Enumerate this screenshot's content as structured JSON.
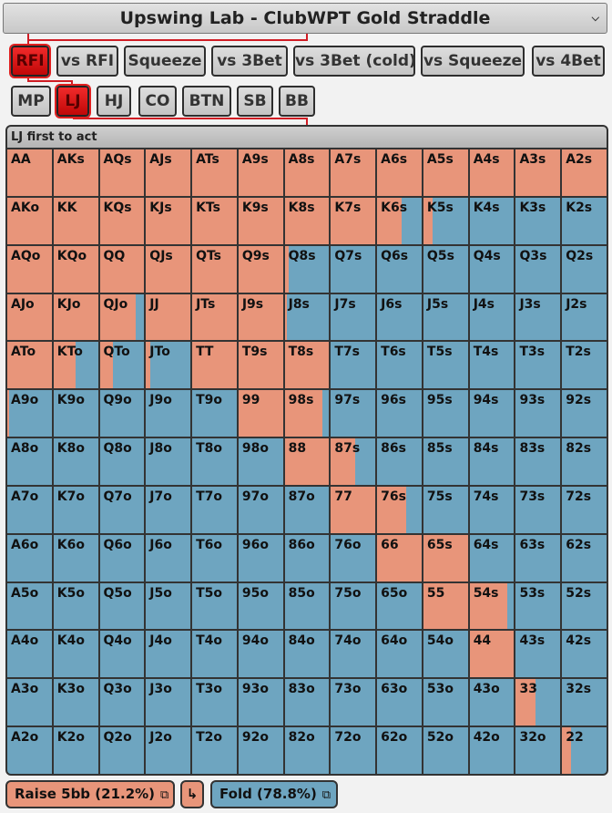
{
  "header": {
    "title": "Upswing Lab - ClubWPT Gold Straddle"
  },
  "action_tabs": [
    "RFI",
    "vs RFI",
    "Squeeze",
    "vs 3Bet",
    "vs 3Bet (cold)",
    "vs Squeeze",
    "vs 4Bet"
  ],
  "action_selected": "RFI",
  "positions": [
    "MP",
    "LJ",
    "HJ",
    "CO",
    "BTN",
    "SB",
    "BB"
  ],
  "position_selected": "LJ",
  "range_title": "LJ first to act",
  "hands": [
    [
      "AA",
      "AKs",
      "AQs",
      "AJs",
      "ATs",
      "A9s",
      "A8s",
      "A7s",
      "A6s",
      "A5s",
      "A4s",
      "A3s",
      "A2s"
    ],
    [
      "AKo",
      "KK",
      "KQs",
      "KJs",
      "KTs",
      "K9s",
      "K8s",
      "K7s",
      "K6s",
      "K5s",
      "K4s",
      "K3s",
      "K2s"
    ],
    [
      "AQo",
      "KQo",
      "QQ",
      "QJs",
      "QTs",
      "Q9s",
      "Q8s",
      "Q7s",
      "Q6s",
      "Q5s",
      "Q4s",
      "Q3s",
      "Q2s"
    ],
    [
      "AJo",
      "KJo",
      "QJo",
      "JJ",
      "JTs",
      "J9s",
      "J8s",
      "J7s",
      "J6s",
      "J5s",
      "J4s",
      "J3s",
      "J2s"
    ],
    [
      "ATo",
      "KTo",
      "QTo",
      "JTo",
      "TT",
      "T9s",
      "T8s",
      "T7s",
      "T6s",
      "T5s",
      "T4s",
      "T3s",
      "T2s"
    ],
    [
      "A9o",
      "K9o",
      "Q9o",
      "J9o",
      "T9o",
      "99",
      "98s",
      "97s",
      "96s",
      "95s",
      "94s",
      "93s",
      "92s"
    ],
    [
      "A8o",
      "K8o",
      "Q8o",
      "J8o",
      "T8o",
      "98o",
      "88",
      "87s",
      "86s",
      "85s",
      "84s",
      "83s",
      "82s"
    ],
    [
      "A7o",
      "K7o",
      "Q7o",
      "J7o",
      "T7o",
      "97o",
      "87o",
      "77",
      "76s",
      "75s",
      "74s",
      "73s",
      "72s"
    ],
    [
      "A6o",
      "K6o",
      "Q6o",
      "J6o",
      "T6o",
      "96o",
      "86o",
      "76o",
      "66",
      "65s",
      "64s",
      "63s",
      "62s"
    ],
    [
      "A5o",
      "K5o",
      "Q5o",
      "J5o",
      "T5o",
      "95o",
      "85o",
      "75o",
      "65o",
      "55",
      "54s",
      "53s",
      "52s"
    ],
    [
      "A4o",
      "K4o",
      "Q4o",
      "J4o",
      "T4o",
      "94o",
      "84o",
      "74o",
      "64o",
      "54o",
      "44",
      "43s",
      "42s"
    ],
    [
      "A3o",
      "K3o",
      "Q3o",
      "J3o",
      "T3o",
      "93o",
      "83o",
      "73o",
      "63o",
      "53o",
      "43o",
      "33",
      "32s"
    ],
    [
      "A2o",
      "K2o",
      "Q2o",
      "J2o",
      "T2o",
      "92o",
      "82o",
      "72o",
      "62o",
      "52o",
      "42o",
      "32o",
      "22"
    ]
  ],
  "raise_freq": [
    [
      1,
      1,
      1,
      1,
      1,
      1,
      1,
      1,
      1,
      1,
      1,
      1,
      1
    ],
    [
      1,
      1,
      1,
      1,
      1,
      1,
      1,
      1,
      0.55,
      0.2,
      0,
      0,
      0
    ],
    [
      1,
      1,
      1,
      1,
      1,
      1,
      0.1,
      0,
      0,
      0,
      0,
      0,
      0
    ],
    [
      1,
      1,
      0.8,
      1,
      1,
      1,
      0.05,
      0,
      0,
      0,
      0,
      0,
      0
    ],
    [
      1,
      0.5,
      0.3,
      0.1,
      1,
      1,
      1,
      0,
      0,
      0,
      0,
      0,
      0
    ],
    [
      0.05,
      0,
      0,
      0,
      0,
      1,
      0.85,
      0,
      0,
      0,
      0,
      0,
      0
    ],
    [
      0,
      0,
      0,
      0,
      0,
      0,
      1,
      0.55,
      0,
      0,
      0,
      0,
      0
    ],
    [
      0,
      0,
      0,
      0,
      0,
      0,
      0,
      1,
      0.65,
      0,
      0,
      0,
      0
    ],
    [
      0,
      0,
      0,
      0,
      0,
      0,
      0,
      0,
      1,
      1,
      0,
      0,
      0
    ],
    [
      0,
      0,
      0,
      0,
      0,
      0,
      0,
      0,
      0,
      1,
      0.85,
      0,
      0
    ],
    [
      0,
      0,
      0,
      0,
      0,
      0,
      0,
      0,
      0,
      0,
      1,
      0,
      0
    ],
    [
      0,
      0,
      0,
      0,
      0,
      0,
      0,
      0,
      0,
      0,
      0,
      0.45,
      0
    ],
    [
      0,
      0,
      0,
      0,
      0,
      0,
      0,
      0,
      0,
      0,
      0,
      0,
      0.2
    ]
  ],
  "legend": {
    "raise_label": "Raise 5bb (21.2%)",
    "fold_label": "Fold (78.8%)",
    "raise_color": "#e8957a",
    "fold_color": "#6ea5c0"
  },
  "icons": {
    "copy": "copy-icon",
    "next": "return-arrow-icon",
    "dropdown": "chevron-down-icon"
  }
}
